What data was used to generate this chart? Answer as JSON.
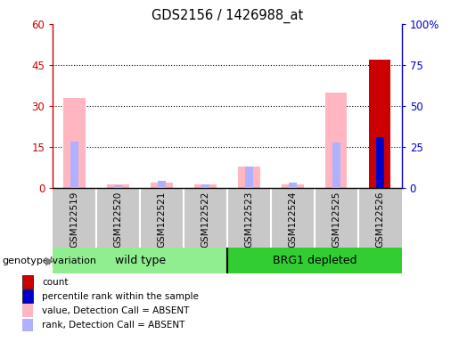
{
  "title": "GDS2156 / 1426988_at",
  "samples": [
    "GSM122519",
    "GSM122520",
    "GSM122521",
    "GSM122522",
    "GSM122523",
    "GSM122524",
    "GSM122525",
    "GSM122526"
  ],
  "groups": [
    {
      "name": "wild type",
      "color": "#90EE90",
      "samples": [
        0,
        1,
        2,
        3
      ]
    },
    {
      "name": "BRG1 depleted",
      "color": "#32CD32",
      "samples": [
        4,
        5,
        6,
        7
      ]
    }
  ],
  "value_absent": [
    33.0,
    1.5,
    2.0,
    1.5,
    8.0,
    1.5,
    35.0,
    null
  ],
  "rank_absent": [
    28.5,
    2.0,
    4.5,
    2.5,
    13.0,
    3.5,
    28.0,
    null
  ],
  "count_present": [
    null,
    null,
    null,
    null,
    null,
    null,
    null,
    47.0
  ],
  "rank_present": [
    null,
    null,
    null,
    null,
    null,
    null,
    null,
    31.0
  ],
  "ylim_left": [
    0,
    60
  ],
  "ylim_right": [
    0,
    100
  ],
  "yticks_left": [
    0,
    15,
    30,
    45,
    60
  ],
  "ytick_labels_left": [
    "0",
    "15",
    "30",
    "45",
    "60"
  ],
  "yticks_right": [
    0,
    25,
    50,
    75,
    100
  ],
  "ytick_labels_right": [
    "0",
    "25",
    "50",
    "75",
    "100%"
  ],
  "color_count": "#CC0000",
  "color_rank": "#0000CC",
  "color_value_absent": "#FFB6C1",
  "color_rank_absent": "#B0B0FF",
  "legend_items": [
    {
      "label": "count",
      "color": "#CC0000"
    },
    {
      "label": "percentile rank within the sample",
      "color": "#0000CC"
    },
    {
      "label": "value, Detection Call = ABSENT",
      "color": "#FFB6C1"
    },
    {
      "label": "rank, Detection Call = ABSENT",
      "color": "#B0B0FF"
    }
  ],
  "genotype_label": "genotype/variation",
  "axis_bg": "#C8C8C8",
  "plot_bg": "#FFFFFF",
  "fig_w": 5.15,
  "fig_h": 3.84,
  "dpi": 100
}
